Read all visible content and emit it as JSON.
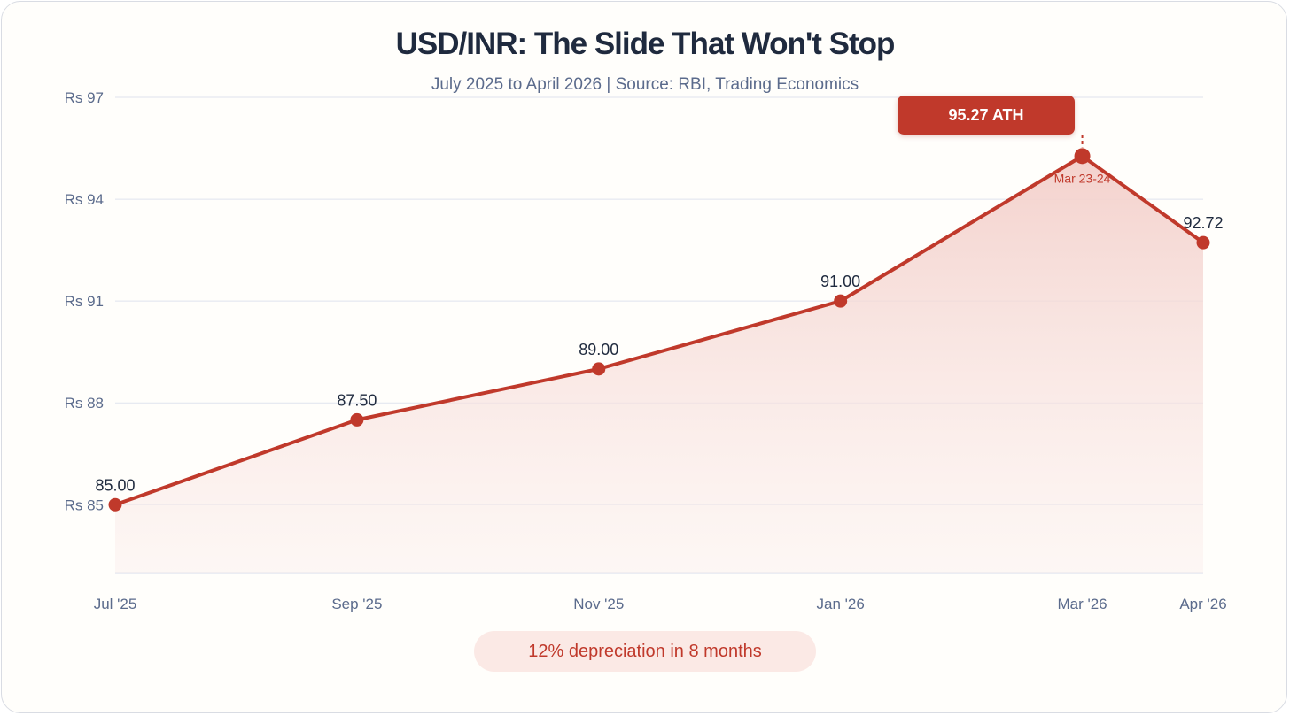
{
  "header": {
    "title": "USD/INR: The Slide That Won't Stop",
    "subtitle": "July 2025 to April 2026 | Source: RBI, Trading Economics"
  },
  "colors": {
    "line": "#c0392b",
    "fill_top": "#f3cfca",
    "grid": "#dfe3ee",
    "axis_text": "#5b6b8c",
    "label_text": "#1f2a3e"
  },
  "chart_data": {
    "type": "line",
    "categories": [
      "Jul '25",
      "Sep '25",
      "Nov '25",
      "Jan '26",
      "Mar '26",
      "Apr '26"
    ],
    "x_months": [
      0,
      2,
      4,
      6,
      8,
      9
    ],
    "series": [
      {
        "values": [
          85.0,
          87.5,
          89.0,
          91.0,
          95.27,
          92.72
        ],
        "value_labels": [
          "85.00",
          "87.50",
          "89.00",
          "91.00",
          "",
          "92.72"
        ]
      }
    ],
    "ylim": [
      83,
      97
    ],
    "yticks": [
      85,
      88,
      91,
      94,
      97
    ],
    "ytick_labels": [
      "Rs 85",
      "Rs 88",
      "Rs 91",
      "Rs 94",
      "Rs 97"
    ],
    "grid": true,
    "area_fill": true,
    "annotations": {
      "peak_label": "95.27 ATH",
      "peak_sublabel": "Mar 23-24",
      "peak_index": 4
    }
  },
  "footer": {
    "pill_text": "12% depreciation in 8 months"
  }
}
